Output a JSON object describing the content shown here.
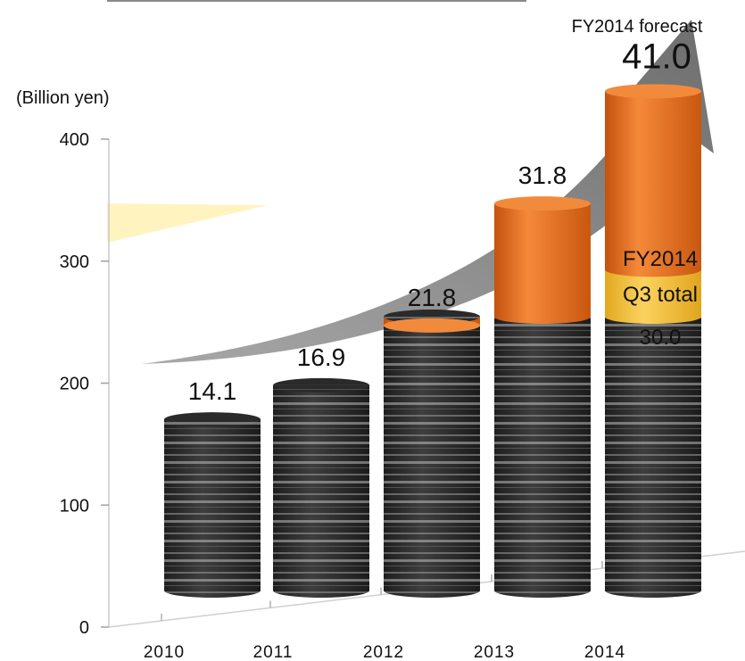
{
  "chart_data": {
    "type": "bar",
    "ylabel": "(Billion yen)",
    "ylim": [
      0,
      400
    ],
    "yticks": [
      0,
      100,
      200,
      300,
      400
    ],
    "categories": [
      "2010",
      "2011",
      "2012",
      "2013",
      "2014"
    ],
    "series": [
      {
        "values": [
          14.1,
          16.9,
          21.8,
          31.8,
          41.0
        ]
      },
      {
        "values": [
          null,
          null,
          null,
          null,
          30.0
        ]
      }
    ],
    "data_labels": [
      "14.1",
      "16.9",
      "21.8",
      "31.8",
      "41.0"
    ],
    "annotations": {
      "forecast": "FY2014 forecast",
      "q3_line1": "FY2014",
      "q3_line2": "Q3 total",
      "q3_value": "30.0"
    },
    "colors": {
      "orange": "#f07a2a",
      "yellow": "#f5c142",
      "dark": "#2c2c2c",
      "arrow": "#8c8c8c"
    },
    "grid": false
  }
}
